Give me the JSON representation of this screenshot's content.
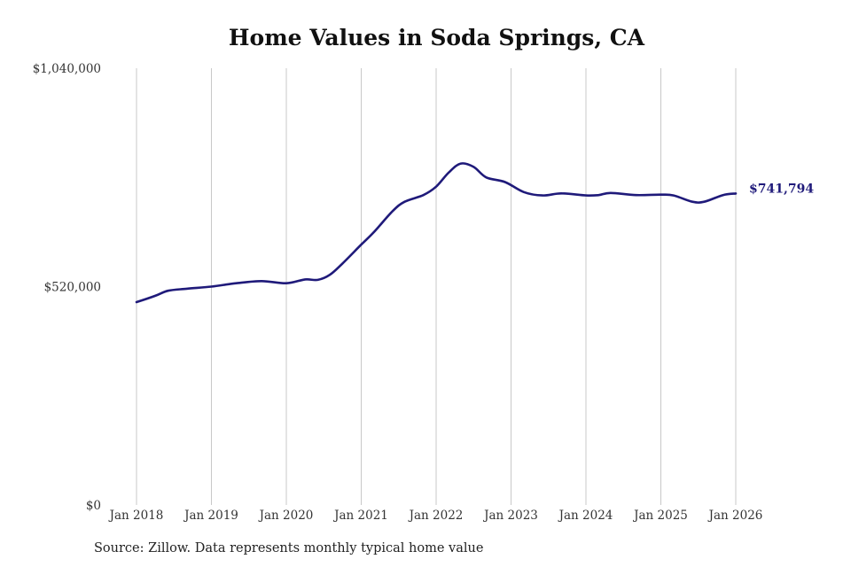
{
  "chart_data": {
    "type": "line",
    "title": "Home Values in Soda Springs, CA",
    "xlabel": "",
    "ylabel": "",
    "ylim": [
      0,
      1040000
    ],
    "y_ticks": [
      {
        "value": 0,
        "label": "$0"
      },
      {
        "value": 520000,
        "label": "$520,000"
      },
      {
        "value": 1040000,
        "label": "$1,040,000"
      }
    ],
    "x_range": [
      2018.0,
      2026.0
    ],
    "x_ticks": [
      {
        "value": 2018,
        "label": "Jan 2018"
      },
      {
        "value": 2019,
        "label": "Jan 2019"
      },
      {
        "value": 2020,
        "label": "Jan 2020"
      },
      {
        "value": 2021,
        "label": "Jan 2021"
      },
      {
        "value": 2022,
        "label": "Jan 2022"
      },
      {
        "value": 2023,
        "label": "Jan 2023"
      },
      {
        "value": 2024,
        "label": "Jan 2024"
      },
      {
        "value": 2025,
        "label": "Jan 2025"
      },
      {
        "value": 2026,
        "label": "Jan 2026"
      }
    ],
    "grid": "vertical",
    "color": "#1f1a7a",
    "series": [
      {
        "x": [
          2018.0,
          2018.25,
          2018.42,
          2018.67,
          2019.0,
          2019.33,
          2019.67,
          2020.0,
          2020.25,
          2020.42,
          2020.58,
          2020.75,
          2021.0,
          2021.17,
          2021.42,
          2021.58,
          2021.83,
          2022.0,
          2022.17,
          2022.33,
          2022.5,
          2022.67,
          2022.92,
          2023.17,
          2023.42,
          2023.67,
          2024.0,
          2024.17,
          2024.33,
          2024.67,
          2025.0,
          2025.17,
          2025.42,
          2025.58,
          2025.83,
          2026.0
        ],
        "values": [
          483000,
          498000,
          510000,
          515000,
          520000,
          528000,
          533000,
          528000,
          537000,
          536000,
          548000,
          575000,
          620000,
          650000,
          700000,
          722000,
          738000,
          758000,
          792000,
          813000,
          805000,
          780000,
          769000,
          745000,
          737000,
          742000,
          737000,
          738000,
          743000,
          738000,
          739000,
          737000,
          722000,
          722000,
          738000,
          741794
        ]
      }
    ],
    "end_label": "$741,794"
  },
  "source_note": "Source: Zillow. Data represents monthly typical home value"
}
